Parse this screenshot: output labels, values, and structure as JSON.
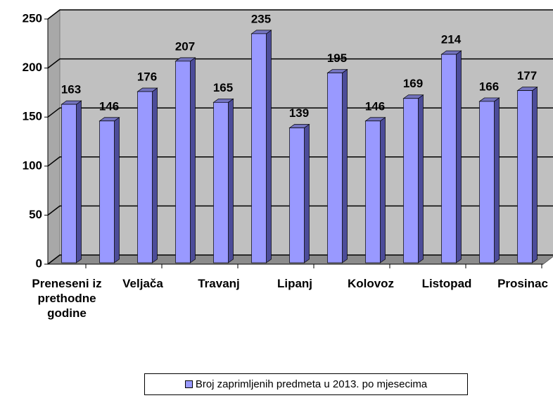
{
  "chart_data": {
    "type": "bar",
    "categories": [
      "Preneseni iz prethodne godine",
      null,
      "Veljača",
      null,
      "Travanj",
      null,
      "Lipanj",
      null,
      "Kolovoz",
      null,
      "Listopad",
      null,
      "Prosinac"
    ],
    "series": [
      {
        "name": "Broj zaprimljenih predmeta u 2013. po mjesecima",
        "color": "#9999ff",
        "values": [
          163,
          146,
          176,
          207,
          165,
          235,
          139,
          195,
          146,
          169,
          214,
          166,
          177
        ]
      }
    ],
    "ylim": [
      0,
      250
    ],
    "yticks": [
      0,
      50,
      100,
      150,
      200,
      250
    ],
    "grid": true,
    "legend": "bottom"
  }
}
